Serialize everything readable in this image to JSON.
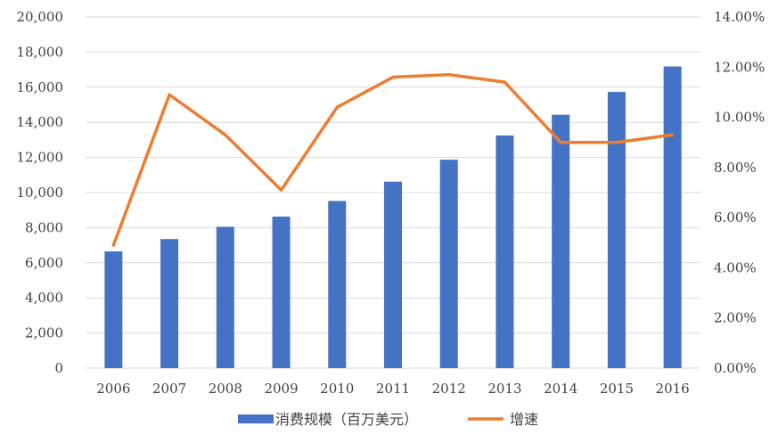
{
  "chart_data": {
    "type": "bar",
    "categories": [
      "2006",
      "2007",
      "2008",
      "2009",
      "2010",
      "2011",
      "2012",
      "2013",
      "2014",
      "2015",
      "2016"
    ],
    "series": [
      {
        "name": "消费规模（百万美元）",
        "type": "bar",
        "axis": "left",
        "color": "#4472C4",
        "values": [
          6650,
          7350,
          8050,
          8630,
          9520,
          10620,
          11870,
          13250,
          14430,
          15730,
          17180
        ]
      },
      {
        "name": "增速",
        "type": "line",
        "axis": "right",
        "color": "#ED7D31",
        "values": [
          0.049,
          0.109,
          0.093,
          0.071,
          0.104,
          0.116,
          0.117,
          0.114,
          0.09,
          0.09,
          0.093
        ]
      }
    ],
    "y_left": {
      "lim": [
        0,
        20000
      ],
      "tick_labels": [
        "0",
        "2,000",
        "4,000",
        "6,000",
        "8,000",
        "10,000",
        "12,000",
        "14,000",
        "16,000",
        "18,000",
        "20,000"
      ]
    },
    "y_right": {
      "lim": [
        0,
        0.14
      ],
      "tick_labels": [
        "0.00%",
        "2.00%",
        "4.00%",
        "6.00%",
        "8.00%",
        "10.00%",
        "12.00%",
        "14.00%"
      ]
    },
    "gridlines": true,
    "legend_position": "bottom",
    "title": "",
    "xlabel": "",
    "ylabel": ""
  }
}
